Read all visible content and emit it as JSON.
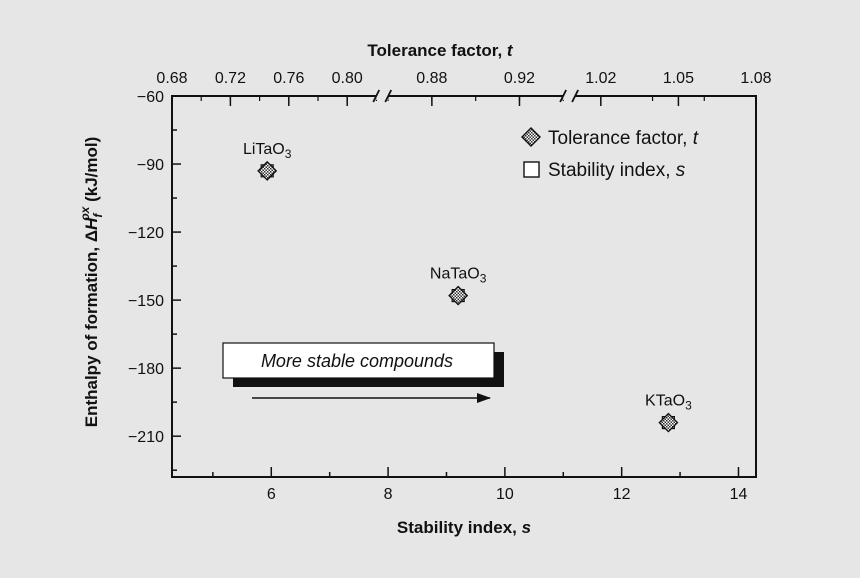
{
  "chart_data": {
    "type": "scatter",
    "xlabel": "Stability index, ",
    "xlabel_var": "s",
    "x2label": "Tolerance factor, ",
    "x2label_var": "t",
    "ylabel_parts": {
      "prefix": "Enthalpy of formation, ",
      "delta": "Δ",
      "symbol": "H",
      "sup": "ox",
      "sub": "f",
      "suffix": " (kJ/mol)"
    },
    "xlim": [
      4.3,
      14.3
    ],
    "ylim": [
      -228,
      -60
    ],
    "x_ticks": [
      6,
      8,
      10,
      12,
      14
    ],
    "y_ticks": [
      -60,
      -90,
      -120,
      -150,
      -180,
      -210
    ],
    "y_tick_labels": [
      "−60",
      "−90",
      "−120",
      "−150",
      "−180",
      "−210"
    ],
    "top_axis": {
      "segments": [
        {
          "t_range": [
            0.68,
            0.82
          ],
          "s_range": [
            4.3,
            7.8
          ],
          "ticks": [
            "0.68",
            "0.72",
            "0.76",
            "0.80"
          ]
        },
        {
          "t_range": [
            0.86,
            0.94
          ],
          "s_range": [
            8.0,
            11.0
          ],
          "ticks": [
            "0.88",
            "0.92"
          ]
        },
        {
          "t_range": [
            1.01,
            1.08
          ],
          "s_range": [
            11.2,
            14.3
          ],
          "ticks": [
            "1.02",
            "1.05",
            "1.08"
          ]
        }
      ],
      "breaks_at_s": [
        7.9,
        11.1
      ]
    },
    "series": [
      {
        "name": "Tolerance factor, ",
        "name_var": "t",
        "marker": "diamond-hatched",
        "points": [
          {
            "label": "LiTaO",
            "label_sub": "3",
            "s": 5.93,
            "y": -93,
            "t": 0.749
          },
          {
            "label": "NaTaO",
            "label_sub": "3",
            "s": 9.2,
            "y": -148,
            "t": 0.895
          },
          {
            "label": "KTaO",
            "label_sub": "3",
            "s": 12.8,
            "y": -204,
            "t": 1.047
          }
        ]
      },
      {
        "name": "Stability index, ",
        "name_var": "s",
        "marker": "square-open",
        "points": [
          {
            "label": "LiTaO",
            "label_sub": "3",
            "s": 5.93,
            "y": -93
          },
          {
            "label": "NaTaO",
            "label_sub": "3",
            "s": 9.2,
            "y": -148
          },
          {
            "label": "KTaO",
            "label_sub": "3",
            "s": 12.8,
            "y": -204
          }
        ]
      }
    ],
    "annotation": "More stable compounds",
    "legend_position": "top-right",
    "grid": false
  }
}
